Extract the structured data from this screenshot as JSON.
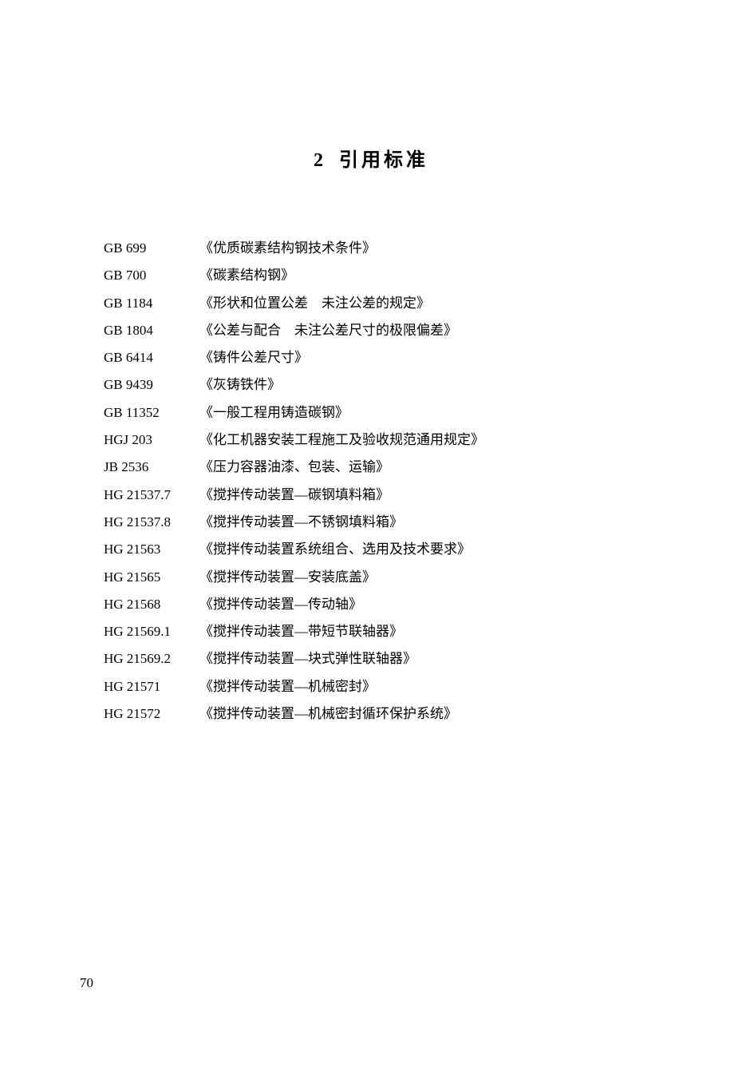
{
  "title": {
    "number": "2",
    "text": "引用标准"
  },
  "standards": [
    {
      "code": "GB 699",
      "name": "《优质碳素结构钢技术条件》"
    },
    {
      "code": "GB 700",
      "name": "《碳素结构钢》"
    },
    {
      "code": "GB 1184",
      "name": "《形状和位置公差　未注公差的规定》"
    },
    {
      "code": "GB 1804",
      "name": "《公差与配合　未注公差尺寸的极限偏差》"
    },
    {
      "code": "GB 6414",
      "name": "《铸件公差尺寸》"
    },
    {
      "code": "GB 9439",
      "name": "《灰铸铁件》"
    },
    {
      "code": "GB 11352",
      "name": "《一般工程用铸造碳钢》"
    },
    {
      "code": "HGJ 203",
      "name": "《化工机器安装工程施工及验收规范通用规定》"
    },
    {
      "code": "JB 2536",
      "name": "《压力容器油漆、包装、运输》"
    },
    {
      "code": "HG 21537.7",
      "name": "《搅拌传动装置—碳钢填料箱》"
    },
    {
      "code": "HG 21537.8",
      "name": "《搅拌传动装置—不锈钢填料箱》"
    },
    {
      "code": "HG 21563",
      "name": "《搅拌传动装置系统组合、选用及技术要求》"
    },
    {
      "code": "HG 21565",
      "name": "《搅拌传动装置—安装底盖》"
    },
    {
      "code": "HG 21568",
      "name": "《搅拌传动装置—传动轴》"
    },
    {
      "code": "HG 21569.1",
      "name": "《搅拌传动装置—带短节联轴器》"
    },
    {
      "code": "HG 21569.2",
      "name": "《搅拌传动装置—块式弹性联轴器》"
    },
    {
      "code": "HG 21571",
      "name": "《搅拌传动装置—机械密封》"
    },
    {
      "code": "HG 21572",
      "name": "《搅拌传动装置—机械密封循环保护系统》"
    }
  ],
  "page_number": "70"
}
